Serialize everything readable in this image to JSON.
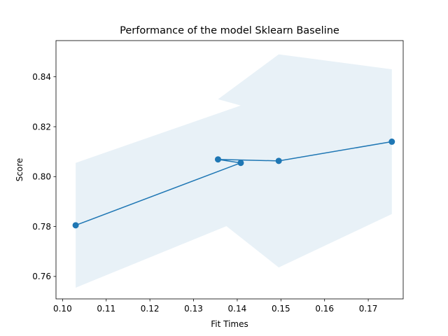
{
  "chart_data": {
    "type": "line",
    "title": "Performance of the model Sklearn Baseline",
    "xlabel": "Fit Times",
    "ylabel": "Score",
    "xlim": [
      0.0985,
      0.178
    ],
    "ylim": [
      0.751,
      0.8545
    ],
    "xticks": [
      0.1,
      0.11,
      0.12,
      0.13,
      0.14,
      0.15,
      0.16,
      0.17
    ],
    "xtick_labels": [
      "0.10",
      "0.11",
      "0.12",
      "0.13",
      "0.14",
      "0.15",
      "0.16",
      "0.17"
    ],
    "yticks": [
      0.76,
      0.78,
      0.8,
      0.82,
      0.84
    ],
    "ytick_labels": [
      "0.76",
      "0.78",
      "0.80",
      "0.82",
      "0.84"
    ],
    "grid": false,
    "series": [
      {
        "x": [
          0.103,
          0.1408,
          0.1356,
          0.1495,
          0.1754
        ],
        "y": [
          0.7805,
          0.8055,
          0.8069,
          0.8063,
          0.814
        ],
        "upper": [
          0.8055,
          0.8285,
          0.831,
          0.849,
          0.843
        ],
        "lower": [
          0.7555,
          0.7825,
          0.7828,
          0.7636,
          0.785
        ],
        "color": "#1f77b4",
        "band_color": "#1f77b4",
        "band_opacity": 0.1,
        "marker": "circle"
      }
    ]
  }
}
